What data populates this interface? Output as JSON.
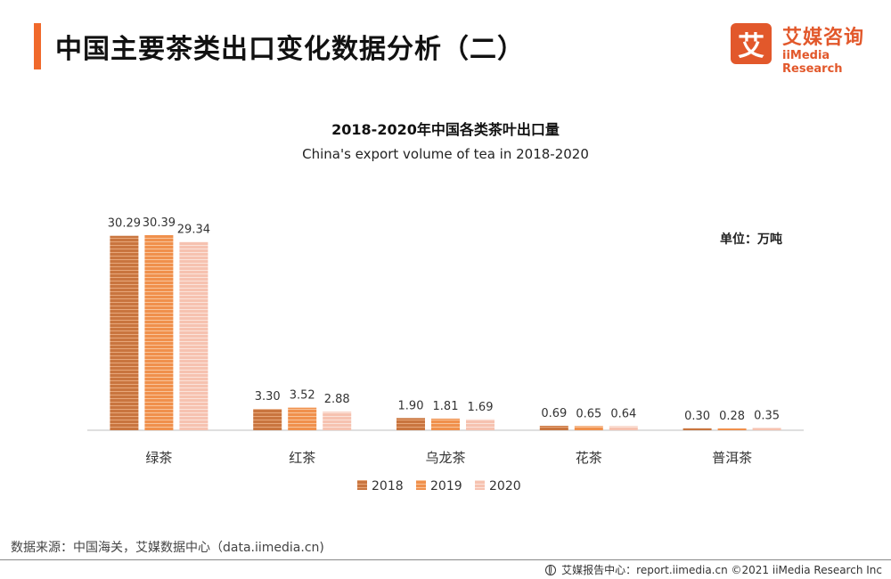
{
  "header": {
    "title": "中国主要茶类出口变化数据分析（二）",
    "logo_mark": "艾",
    "logo_cn": "艾媒咨询",
    "logo_en": "iiMedia Research"
  },
  "chart_data": {
    "type": "bar",
    "title": "2018-2020年中国各类茶叶出口量",
    "subtitle": "China's export volume of tea in 2018-2020",
    "unit_label": "单位：万吨",
    "categories": [
      "绿茶",
      "红茶",
      "乌龙茶",
      "花茶",
      "普洱茶"
    ],
    "series": [
      {
        "name": "2018",
        "color": "#c9753f",
        "values": [
          30.29,
          3.3,
          1.9,
          0.69,
          0.3
        ],
        "labels": [
          "30.29",
          "3.30",
          "1.90",
          "0.69",
          "0.30"
        ]
      },
      {
        "name": "2019",
        "color": "#f0904c",
        "values": [
          30.39,
          3.52,
          1.81,
          0.65,
          0.28
        ],
        "labels": [
          "30.39",
          "3.52",
          "1.81",
          "0.65",
          "0.28"
        ]
      },
      {
        "name": "2020",
        "color": "#f6c2b0",
        "values": [
          29.34,
          2.88,
          1.69,
          0.64,
          0.35
        ],
        "labels": [
          "29.34",
          "2.88",
          "1.69",
          "0.64",
          "0.35"
        ]
      }
    ],
    "ylim": [
      0,
      30.39
    ],
    "grid": false,
    "legend_position": "bottom"
  },
  "footer": {
    "source": "数据来源：中国海关，艾媒数据中心（data.iimedia.cn)",
    "credit": "艾媒报告中心：report.iimedia.cn   ©2021  iiMedia Research  Inc"
  }
}
